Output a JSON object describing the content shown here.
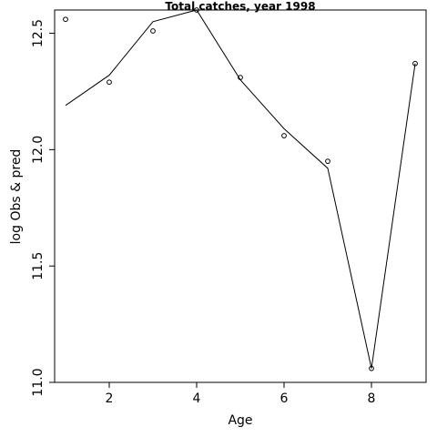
{
  "chart_data": {
    "type": "line",
    "title": "Total catches, year 1998",
    "xlabel": "Age",
    "ylabel": "log Obs & pred",
    "xlim": [
      0.75,
      9.25
    ],
    "ylim": [
      11.0,
      12.6
    ],
    "x_ticks": [
      2,
      4,
      6,
      8
    ],
    "y_ticks": [
      11.0,
      11.5,
      12.0,
      12.5
    ],
    "x_tick_labels": [
      "2",
      "4",
      "6",
      "8"
    ],
    "y_tick_labels": [
      "11.0",
      "11.5",
      "12.0",
      "12.5"
    ],
    "grid": false,
    "series": [
      {
        "style": "points",
        "x": [
          1,
          2,
          3,
          4,
          5,
          6,
          7,
          8,
          9
        ],
        "y": [
          12.56,
          12.29,
          12.51,
          12.6,
          12.31,
          12.06,
          11.95,
          11.06,
          12.37
        ]
      },
      {
        "style": "line",
        "x": [
          1,
          2,
          3,
          4,
          5,
          6,
          7,
          8,
          9
        ],
        "y": [
          12.19,
          12.32,
          12.55,
          12.6,
          12.3,
          12.09,
          11.92,
          11.06,
          12.37
        ]
      }
    ]
  }
}
